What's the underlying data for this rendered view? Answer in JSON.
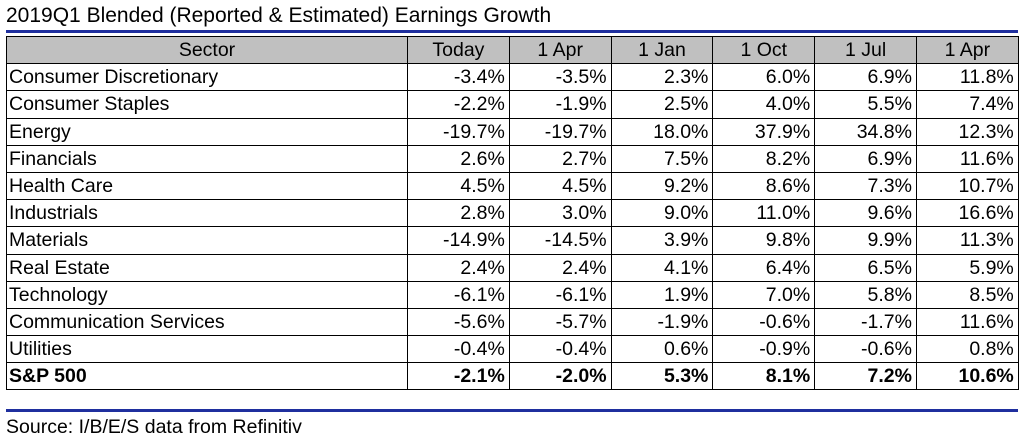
{
  "title": "2019Q1 Blended (Reported & Estimated) Earnings Growth",
  "table": {
    "headers": [
      "Sector",
      "Today",
      "1 Apr",
      "1 Jan",
      "1 Oct",
      "1 Jul",
      "1 Apr"
    ],
    "rows": [
      {
        "sector": "Consumer Discretionary",
        "values": [
          "-3.4%",
          "-3.5%",
          "2.3%",
          "6.0%",
          "6.9%",
          "11.8%"
        ]
      },
      {
        "sector": "Consumer Staples",
        "values": [
          "-2.2%",
          "-1.9%",
          "2.5%",
          "4.0%",
          "5.5%",
          "7.4%"
        ]
      },
      {
        "sector": "Energy",
        "values": [
          "-19.7%",
          "-19.7%",
          "18.0%",
          "37.9%",
          "34.8%",
          "12.3%"
        ]
      },
      {
        "sector": "Financials",
        "values": [
          "2.6%",
          "2.7%",
          "7.5%",
          "8.2%",
          "6.9%",
          "11.6%"
        ]
      },
      {
        "sector": "Health Care",
        "values": [
          "4.5%",
          "4.5%",
          "9.2%",
          "8.6%",
          "7.3%",
          "10.7%"
        ]
      },
      {
        "sector": "Industrials",
        "values": [
          "2.8%",
          "3.0%",
          "9.0%",
          "11.0%",
          "9.6%",
          "16.6%"
        ]
      },
      {
        "sector": "Materials",
        "values": [
          "-14.9%",
          "-14.5%",
          "3.9%",
          "9.8%",
          "9.9%",
          "11.3%"
        ]
      },
      {
        "sector": "Real Estate",
        "values": [
          "2.4%",
          "2.4%",
          "4.1%",
          "6.4%",
          "6.5%",
          "5.9%"
        ]
      },
      {
        "sector": "Technology",
        "values": [
          "-6.1%",
          "-6.1%",
          "1.9%",
          "7.0%",
          "5.8%",
          "8.5%"
        ]
      },
      {
        "sector": "Communication Services",
        "values": [
          "-5.6%",
          "-5.7%",
          "-1.9%",
          "-0.6%",
          "-1.7%",
          "11.6%"
        ]
      },
      {
        "sector": "Utilities",
        "values": [
          "-0.4%",
          "-0.4%",
          "0.6%",
          "-0.9%",
          "-0.6%",
          "0.8%"
        ]
      }
    ],
    "total": {
      "sector": "S&P 500",
      "values": [
        "-2.1%",
        "-2.0%",
        "5.3%",
        "8.1%",
        "7.2%",
        "10.6%"
      ]
    }
  },
  "source": "Source: I/B/E/S data from Refinitiv",
  "colors": {
    "rule": "#1f2f9e",
    "header_fill": "#c0c0c0",
    "border": "#000000"
  }
}
